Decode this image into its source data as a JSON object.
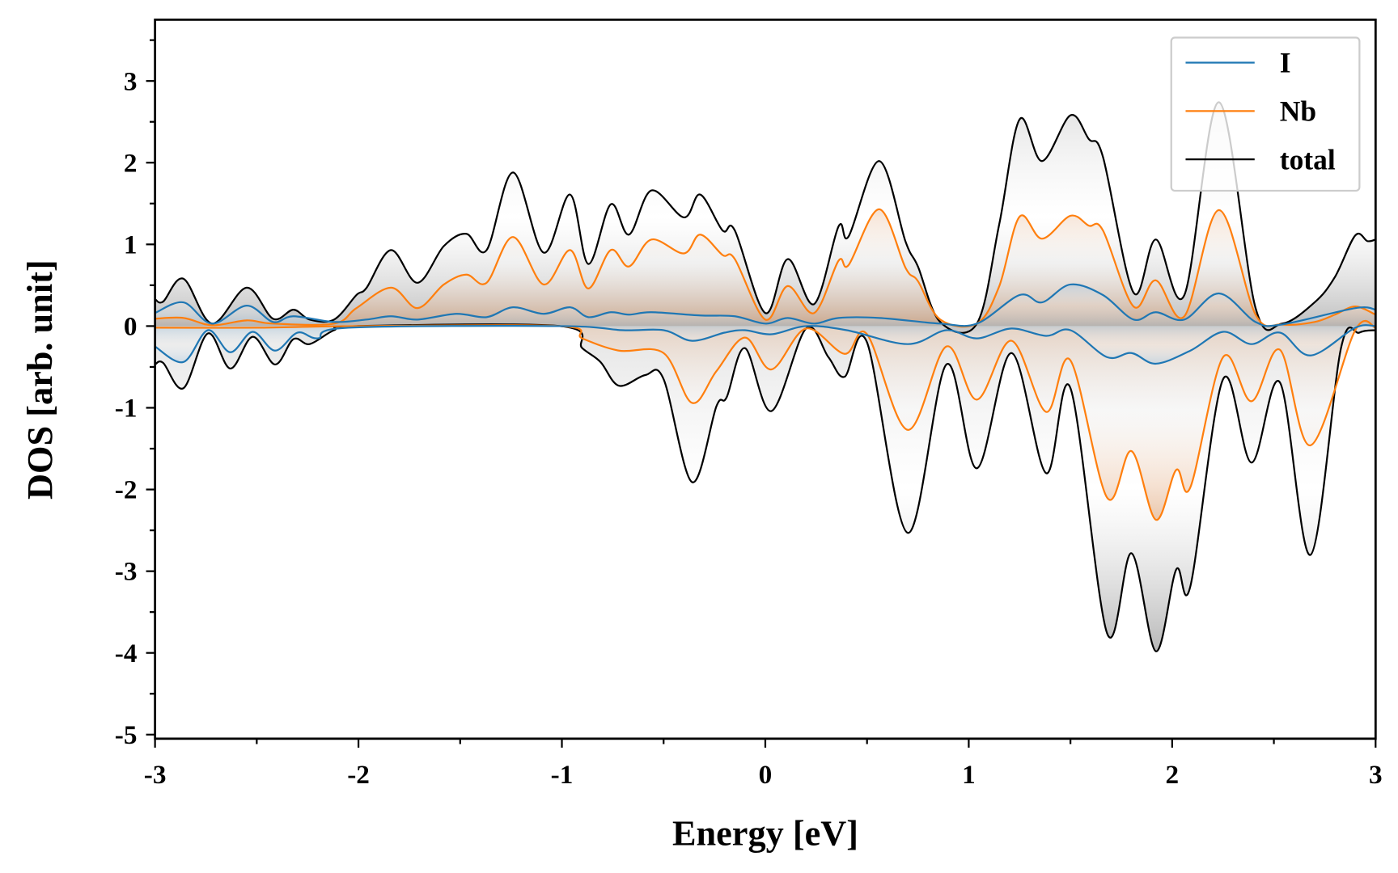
{
  "chart_data": {
    "type": "line",
    "title": "",
    "xlabel": "Energy [eV]",
    "ylabel": "DOS [arb. unit]",
    "xlim": [
      -3,
      3
    ],
    "ylim": [
      -5.05,
      3.75
    ],
    "xticks": [
      -3,
      -2,
      -1,
      0,
      1,
      2,
      3
    ],
    "xtick_labels": [
      "-3",
      "-2",
      "-1",
      "0",
      "1",
      "2",
      "3"
    ],
    "yticks": [
      -5,
      -4,
      -3,
      -2,
      -1,
      0,
      1,
      2,
      3
    ],
    "ytick_labels": [
      "-5",
      "-4",
      "-3",
      "-2",
      "-1",
      "0",
      "1",
      "2",
      "3"
    ],
    "grid": false,
    "legend_position": "top-right",
    "series": [
      {
        "name": "I",
        "color": "#1f77b4",
        "up": [
          [
            -3,
            0.16
          ],
          [
            -2.86,
            0.29
          ],
          [
            -2.72,
            0.03
          ],
          [
            -2.55,
            0.25
          ],
          [
            -2.42,
            0.05
          ],
          [
            -2.32,
            0.12
          ],
          [
            -2.12,
            0.05
          ],
          [
            -1.96,
            0.08
          ],
          [
            -1.84,
            0.12
          ],
          [
            -1.71,
            0.08
          ],
          [
            -1.52,
            0.15
          ],
          [
            -1.37,
            0.11
          ],
          [
            -1.24,
            0.23
          ],
          [
            -1.09,
            0.15
          ],
          [
            -0.96,
            0.23
          ],
          [
            -0.87,
            0.11
          ],
          [
            -0.76,
            0.17
          ],
          [
            -0.67,
            0.14
          ],
          [
            -0.56,
            0.17
          ],
          [
            -0.32,
            0.13
          ],
          [
            -0.15,
            0.12
          ],
          [
            0,
            0.03
          ],
          [
            0.11,
            0.1
          ],
          [
            0.24,
            0.03
          ],
          [
            0.36,
            0.1
          ],
          [
            0.56,
            0.1
          ],
          [
            0.86,
            0.03
          ],
          [
            1.04,
            0.03
          ],
          [
            1.25,
            0.38
          ],
          [
            1.36,
            0.29
          ],
          [
            1.5,
            0.51
          ],
          [
            1.66,
            0.38
          ],
          [
            1.81,
            0.08
          ],
          [
            1.92,
            0.17
          ],
          [
            2.06,
            0.08
          ],
          [
            2.23,
            0.4
          ],
          [
            2.41,
            0.05
          ],
          [
            2.54,
            0.02
          ],
          [
            2.9,
            0.22
          ],
          [
            3,
            0.2
          ]
        ],
        "down": [
          [
            -3,
            -0.25
          ],
          [
            -2.86,
            -0.44
          ],
          [
            -2.74,
            -0.05
          ],
          [
            -2.63,
            -0.32
          ],
          [
            -2.52,
            -0.07
          ],
          [
            -2.41,
            -0.3
          ],
          [
            -2.3,
            -0.08
          ],
          [
            -2.2,
            -0.15
          ],
          [
            -2.05,
            -0.02
          ],
          [
            -1.01,
            0
          ],
          [
            -0.7,
            -0.05
          ],
          [
            -0.5,
            -0.05
          ],
          [
            -0.36,
            -0.18
          ],
          [
            -0.2,
            -0.08
          ],
          [
            -0.1,
            -0.05
          ],
          [
            0.03,
            -0.1
          ],
          [
            0.2,
            0
          ],
          [
            0.4,
            -0.05
          ],
          [
            0.7,
            -0.22
          ],
          [
            0.89,
            -0.05
          ],
          [
            1.04,
            -0.15
          ],
          [
            1.21,
            -0.03
          ],
          [
            1.38,
            -0.12
          ],
          [
            1.5,
            -0.05
          ],
          [
            1.68,
            -0.38
          ],
          [
            1.8,
            -0.33
          ],
          [
            1.92,
            -0.46
          ],
          [
            2.09,
            -0.3
          ],
          [
            2.25,
            -0.07
          ],
          [
            2.39,
            -0.22
          ],
          [
            2.53,
            -0.08
          ],
          [
            2.68,
            -0.36
          ],
          [
            2.9,
            -0.02
          ],
          [
            3,
            0
          ]
        ]
      },
      {
        "name": "Nb",
        "color": "#ff7f0e",
        "up": [
          [
            -3,
            0.09
          ],
          [
            -2.86,
            0.1
          ],
          [
            -2.72,
            0.01
          ],
          [
            -2.55,
            0.07
          ],
          [
            -2.42,
            0.03
          ],
          [
            -2.12,
            0.03
          ],
          [
            -2.01,
            0.22
          ],
          [
            -1.84,
            0.47
          ],
          [
            -1.71,
            0.22
          ],
          [
            -1.58,
            0.51
          ],
          [
            -1.47,
            0.63
          ],
          [
            -1.37,
            0.53
          ],
          [
            -1.24,
            1.09
          ],
          [
            -1.09,
            0.51
          ],
          [
            -0.96,
            0.93
          ],
          [
            -0.87,
            0.46
          ],
          [
            -0.76,
            0.93
          ],
          [
            -0.67,
            0.73
          ],
          [
            -0.56,
            1.06
          ],
          [
            -0.4,
            0.89
          ],
          [
            -0.32,
            1.12
          ],
          [
            -0.21,
            0.87
          ],
          [
            -0.15,
            0.82
          ],
          [
            0,
            0.08
          ],
          [
            0.11,
            0.49
          ],
          [
            0.24,
            0.16
          ],
          [
            0.36,
            0.8
          ],
          [
            0.41,
            0.75
          ],
          [
            0.56,
            1.43
          ],
          [
            0.69,
            0.71
          ],
          [
            0.75,
            0.55
          ],
          [
            0.86,
            0.08
          ],
          [
            1.04,
            0.03
          ],
          [
            1.15,
            0.49
          ],
          [
            1.25,
            1.34
          ],
          [
            1.36,
            1.07
          ],
          [
            1.5,
            1.35
          ],
          [
            1.59,
            1.23
          ],
          [
            1.66,
            1.17
          ],
          [
            1.81,
            0.24
          ],
          [
            1.92,
            0.56
          ],
          [
            2.06,
            0.12
          ],
          [
            2.23,
            1.42
          ],
          [
            2.41,
            0.14
          ],
          [
            2.54,
            0.02
          ],
          [
            2.7,
            0.05
          ],
          [
            2.8,
            0.14
          ],
          [
            2.9,
            0.24
          ],
          [
            3,
            0.14
          ]
        ],
        "down": [
          [
            -3,
            -0.02
          ],
          [
            -2.5,
            -0.02
          ],
          [
            -2,
            0
          ],
          [
            -1.01,
            0
          ],
          [
            -0.9,
            -0.15
          ],
          [
            -0.72,
            -0.3
          ],
          [
            -0.5,
            -0.33
          ],
          [
            -0.36,
            -0.94
          ],
          [
            -0.24,
            -0.55
          ],
          [
            -0.1,
            -0.14
          ],
          [
            0.03,
            -0.53
          ],
          [
            0.2,
            -0.03
          ],
          [
            0.39,
            -0.34
          ],
          [
            0.5,
            -0.1
          ],
          [
            0.7,
            -1.27
          ],
          [
            0.89,
            -0.25
          ],
          [
            1.04,
            -0.9
          ],
          [
            1.21,
            -0.18
          ],
          [
            1.38,
            -1.05
          ],
          [
            1.5,
            -0.42
          ],
          [
            1.68,
            -2.1
          ],
          [
            1.8,
            -1.53
          ],
          [
            1.92,
            -2.37
          ],
          [
            2.02,
            -1.76
          ],
          [
            2.09,
            -1.97
          ],
          [
            2.25,
            -0.38
          ],
          [
            2.39,
            -0.92
          ],
          [
            2.53,
            -0.29
          ],
          [
            2.68,
            -1.46
          ],
          [
            2.9,
            -0.05
          ],
          [
            3,
            -0.02
          ]
        ]
      },
      {
        "name": "total",
        "color": "#000000",
        "up": [
          [
            -3,
            0.33
          ],
          [
            -2.96,
            0.3
          ],
          [
            -2.86,
            0.58
          ],
          [
            -2.72,
            0.03
          ],
          [
            -2.55,
            0.47
          ],
          [
            -2.42,
            0.09
          ],
          [
            -2.32,
            0.2
          ],
          [
            -2.24,
            0.08
          ],
          [
            -2.12,
            0.08
          ],
          [
            -2.01,
            0.38
          ],
          [
            -1.96,
            0.47
          ],
          [
            -1.84,
            0.93
          ],
          [
            -1.71,
            0.53
          ],
          [
            -1.58,
            0.98
          ],
          [
            -1.47,
            1.13
          ],
          [
            -1.37,
            0.93
          ],
          [
            -1.24,
            1.88
          ],
          [
            -1.09,
            0.9
          ],
          [
            -0.96,
            1.61
          ],
          [
            -0.87,
            0.76
          ],
          [
            -0.76,
            1.49
          ],
          [
            -0.67,
            1.12
          ],
          [
            -0.56,
            1.66
          ],
          [
            -0.4,
            1.33
          ],
          [
            -0.32,
            1.61
          ],
          [
            -0.21,
            1.17
          ],
          [
            -0.15,
            1.17
          ],
          [
            0,
            0.16
          ],
          [
            0.11,
            0.82
          ],
          [
            0.24,
            0.27
          ],
          [
            0.36,
            1.22
          ],
          [
            0.41,
            1.1
          ],
          [
            0.56,
            2.02
          ],
          [
            0.69,
            1.03
          ],
          [
            0.75,
            0.73
          ],
          [
            0.86,
            0.05
          ],
          [
            1.04,
            0.03
          ],
          [
            1.15,
            1.25
          ],
          [
            1.25,
            2.53
          ],
          [
            1.36,
            2.02
          ],
          [
            1.5,
            2.58
          ],
          [
            1.59,
            2.29
          ],
          [
            1.66,
            2.07
          ],
          [
            1.81,
            0.41
          ],
          [
            1.92,
            1.06
          ],
          [
            2.06,
            0.38
          ],
          [
            2.23,
            2.74
          ],
          [
            2.41,
            0.22
          ],
          [
            2.54,
            0.03
          ],
          [
            2.7,
            0.29
          ],
          [
            2.8,
            0.6
          ],
          [
            2.9,
            1.11
          ],
          [
            2.96,
            1.04
          ],
          [
            3,
            1.06
          ]
        ],
        "down": [
          [
            -3,
            -0.47
          ],
          [
            -2.96,
            -0.45
          ],
          [
            -2.86,
            -0.76
          ],
          [
            -2.74,
            -0.09
          ],
          [
            -2.63,
            -0.52
          ],
          [
            -2.52,
            -0.13
          ],
          [
            -2.41,
            -0.47
          ],
          [
            -2.32,
            -0.16
          ],
          [
            -2.24,
            -0.22
          ],
          [
            -2.12,
            -0.05
          ],
          [
            -2.01,
            0
          ],
          [
            -1.01,
            0
          ],
          [
            -0.9,
            -0.27
          ],
          [
            -0.81,
            -0.44
          ],
          [
            -0.72,
            -0.73
          ],
          [
            -0.59,
            -0.6
          ],
          [
            -0.5,
            -0.65
          ],
          [
            -0.36,
            -1.91
          ],
          [
            -0.24,
            -0.98
          ],
          [
            -0.19,
            -0.87
          ],
          [
            -0.1,
            -0.27
          ],
          [
            0.03,
            -1.04
          ],
          [
            0.2,
            -0.03
          ],
          [
            0.31,
            -0.38
          ],
          [
            0.39,
            -0.62
          ],
          [
            0.5,
            -0.2
          ],
          [
            0.7,
            -2.53
          ],
          [
            0.89,
            -0.47
          ],
          [
            1.04,
            -1.74
          ],
          [
            1.21,
            -0.33
          ],
          [
            1.38,
            -1.8
          ],
          [
            1.5,
            -0.76
          ],
          [
            1.68,
            -3.76
          ],
          [
            1.8,
            -2.78
          ],
          [
            1.92,
            -3.98
          ],
          [
            2.02,
            -2.98
          ],
          [
            2.09,
            -3.18
          ],
          [
            2.25,
            -0.65
          ],
          [
            2.39,
            -1.67
          ],
          [
            2.53,
            -0.69
          ],
          [
            2.68,
            -2.8
          ],
          [
            2.83,
            -0.27
          ],
          [
            2.92,
            -0.08
          ],
          [
            3,
            -0.05
          ]
        ]
      }
    ]
  }
}
